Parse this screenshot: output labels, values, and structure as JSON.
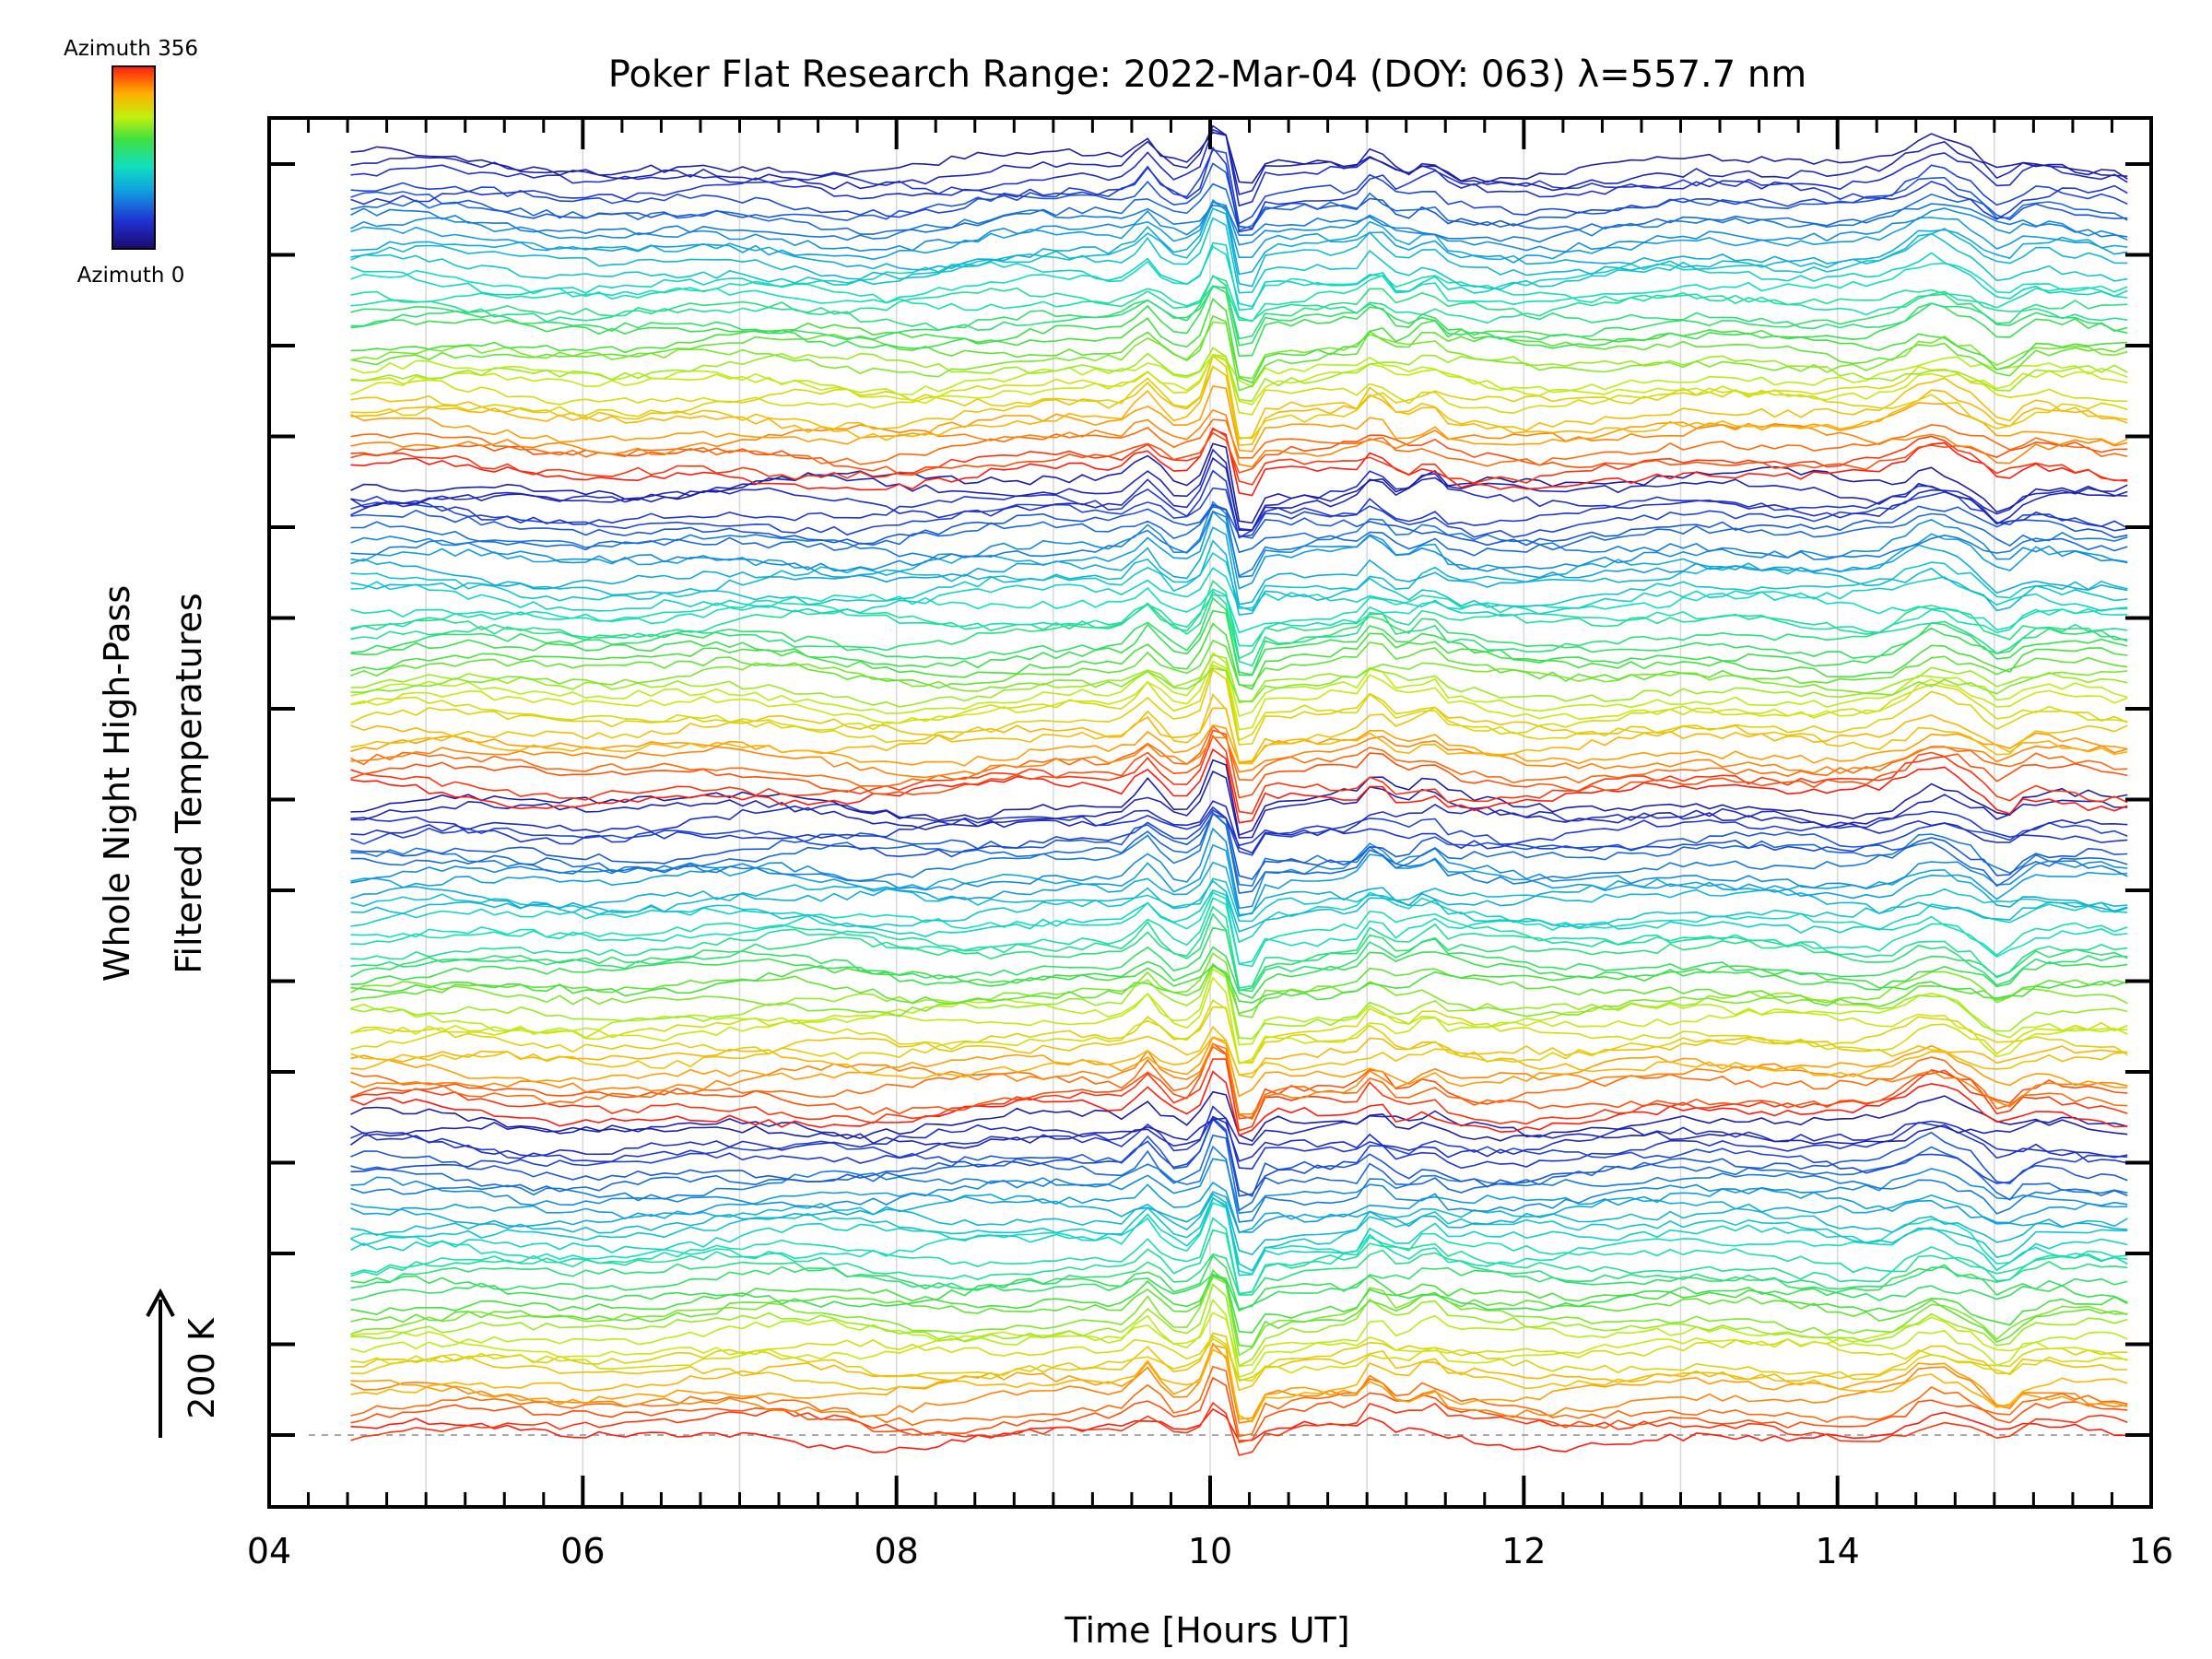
{
  "chart_data": {
    "type": "line",
    "title": "Poker Flat Research Range: 2022-Mar-04 (DOY: 063) λ=557.7 nm",
    "xlabel": "Time [Hours UT]",
    "ylabel_line1": "Whole Night High-Pass",
    "ylabel_line2": "Filtered Temperatures",
    "scale_label": "200 K",
    "xlim": [
      4,
      16
    ],
    "xticks": [
      "04",
      "06",
      "08",
      "10",
      "12",
      "14",
      "16"
    ],
    "colorbar": {
      "top_label": "Azimuth 356",
      "bottom_label": "Azimuth 0"
    },
    "t_start": 4.52,
    "t_end": 15.85,
    "stacked_traces": 144,
    "event_hours": [
      9.6,
      10.05,
      11.05,
      11.4,
      14.6,
      15.05
    ],
    "grid": true,
    "colors": {
      "low_azimuth": "#1a0a6e",
      "high_azimuth": "#ff3a10",
      "grid": "#d8d8d8"
    }
  }
}
